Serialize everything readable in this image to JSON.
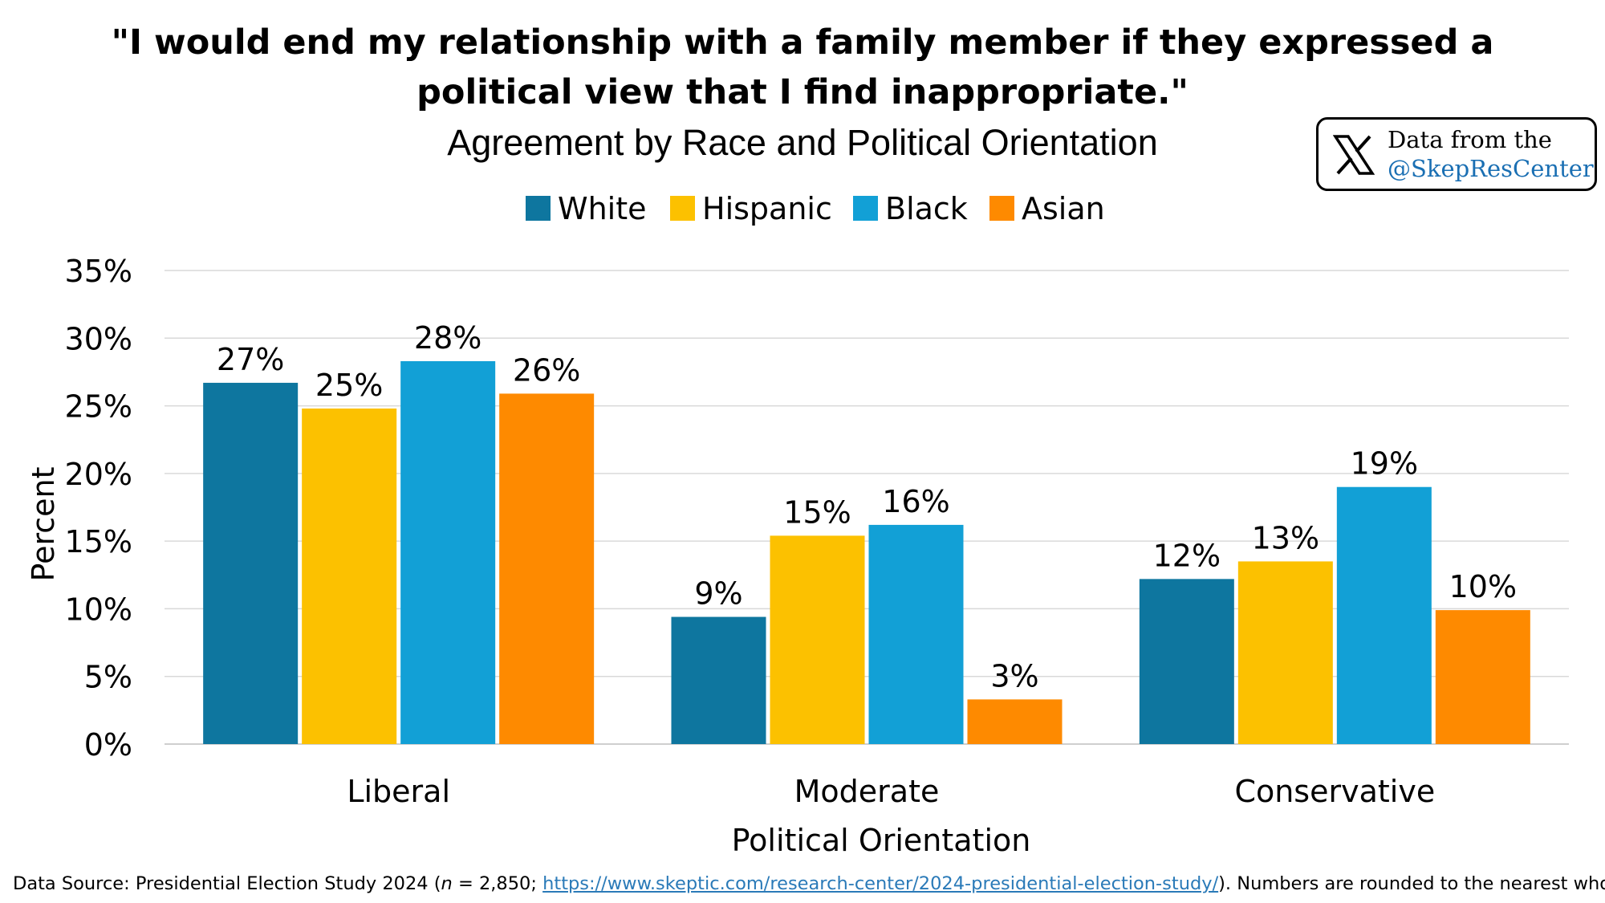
{
  "header": {
    "title_line1": "\"I would end my relationship with a family member if they expressed a",
    "title_line2": "political view that I find inappropriate.\"",
    "subtitle": "Agreement by Race and Political Orientation"
  },
  "badge": {
    "icon": "x-logo-icon",
    "line1": "Data from the",
    "line2": "@SkepResCenter"
  },
  "footer": {
    "source_prefix": "Data Source: Presidential Election Study 2024 (",
    "n_label": "n",
    "n_value": " = 2,850; ",
    "link": "https://www.skeptic.com/research-center/2024-presidential-election-study/",
    "source_suffix": "). Numbers are rounded to the nearest whole."
  },
  "chart_data": {
    "type": "bar",
    "categories": [
      "Liberal",
      "Moderate",
      "Conservative"
    ],
    "series": [
      {
        "name": "White",
        "color": "#0e769f",
        "values": [
          26.7,
          9.4,
          12.2
        ],
        "labels": [
          "27%",
          "9%",
          "12%"
        ]
      },
      {
        "name": "Hispanic",
        "color": "#fcc100",
        "values": [
          24.8,
          15.4,
          13.5
        ],
        "labels": [
          "25%",
          "15%",
          "13%"
        ]
      },
      {
        "name": "Black",
        "color": "#12a0d6",
        "values": [
          28.3,
          16.2,
          19.0
        ],
        "labels": [
          "28%",
          "16%",
          "19%"
        ]
      },
      {
        "name": "Asian",
        "color": "#fe8a00",
        "values": [
          25.9,
          3.3,
          9.9
        ],
        "labels": [
          "26%",
          "3%",
          "10%"
        ]
      }
    ],
    "title": "\"I would end my relationship with a family member if they expressed a political view that I find inappropriate.\"",
    "subtitle": "Agreement by Race and Political Orientation",
    "xlabel": "Political Orientation",
    "ylabel": "Percent",
    "ylim": [
      0,
      35
    ],
    "yticks": [
      "0%",
      "5%",
      "10%",
      "15%",
      "20%",
      "25%",
      "30%",
      "35%"
    ],
    "grid": true,
    "legend_position": "top"
  }
}
